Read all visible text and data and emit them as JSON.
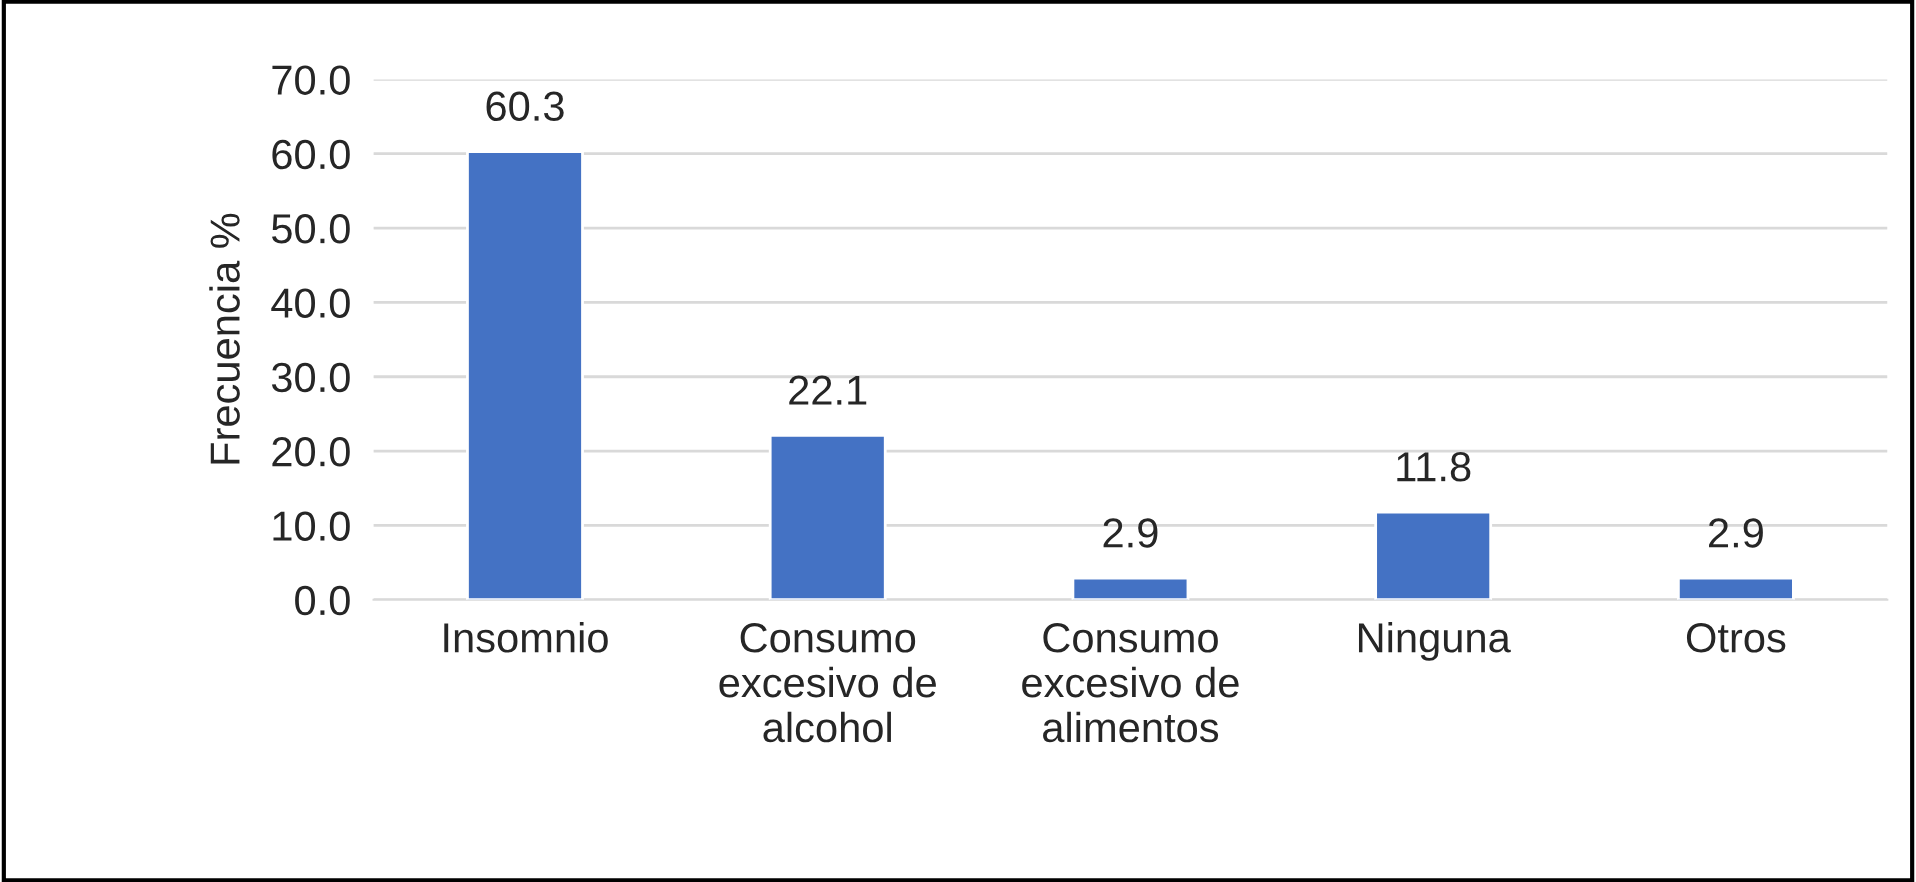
{
  "chart_data": {
    "type": "bar",
    "ylabel": "Frecuencia %",
    "categories": [
      "Insomnio",
      "Consumo\nexcesivo de\nalcohol",
      "Consumo\nexcesivo de\nalimentos",
      "Ninguna",
      "Otros"
    ],
    "values": [
      60.3,
      22.1,
      2.9,
      11.8,
      2.9
    ],
    "color": "#4472c4",
    "ylim": [
      0,
      70
    ],
    "yticks": [
      {
        "value": 0,
        "label": "0.0"
      },
      {
        "value": 10,
        "label": "10.0"
      },
      {
        "value": 20,
        "label": "20.0"
      },
      {
        "value": 30,
        "label": "30.0"
      },
      {
        "value": 40,
        "label": "40.0"
      },
      {
        "value": 50,
        "label": "50.0"
      },
      {
        "value": 60,
        "label": "60.0"
      },
      {
        "value": 70,
        "label": "70.0"
      }
    ],
    "grid": "y",
    "data_labels": true
  }
}
